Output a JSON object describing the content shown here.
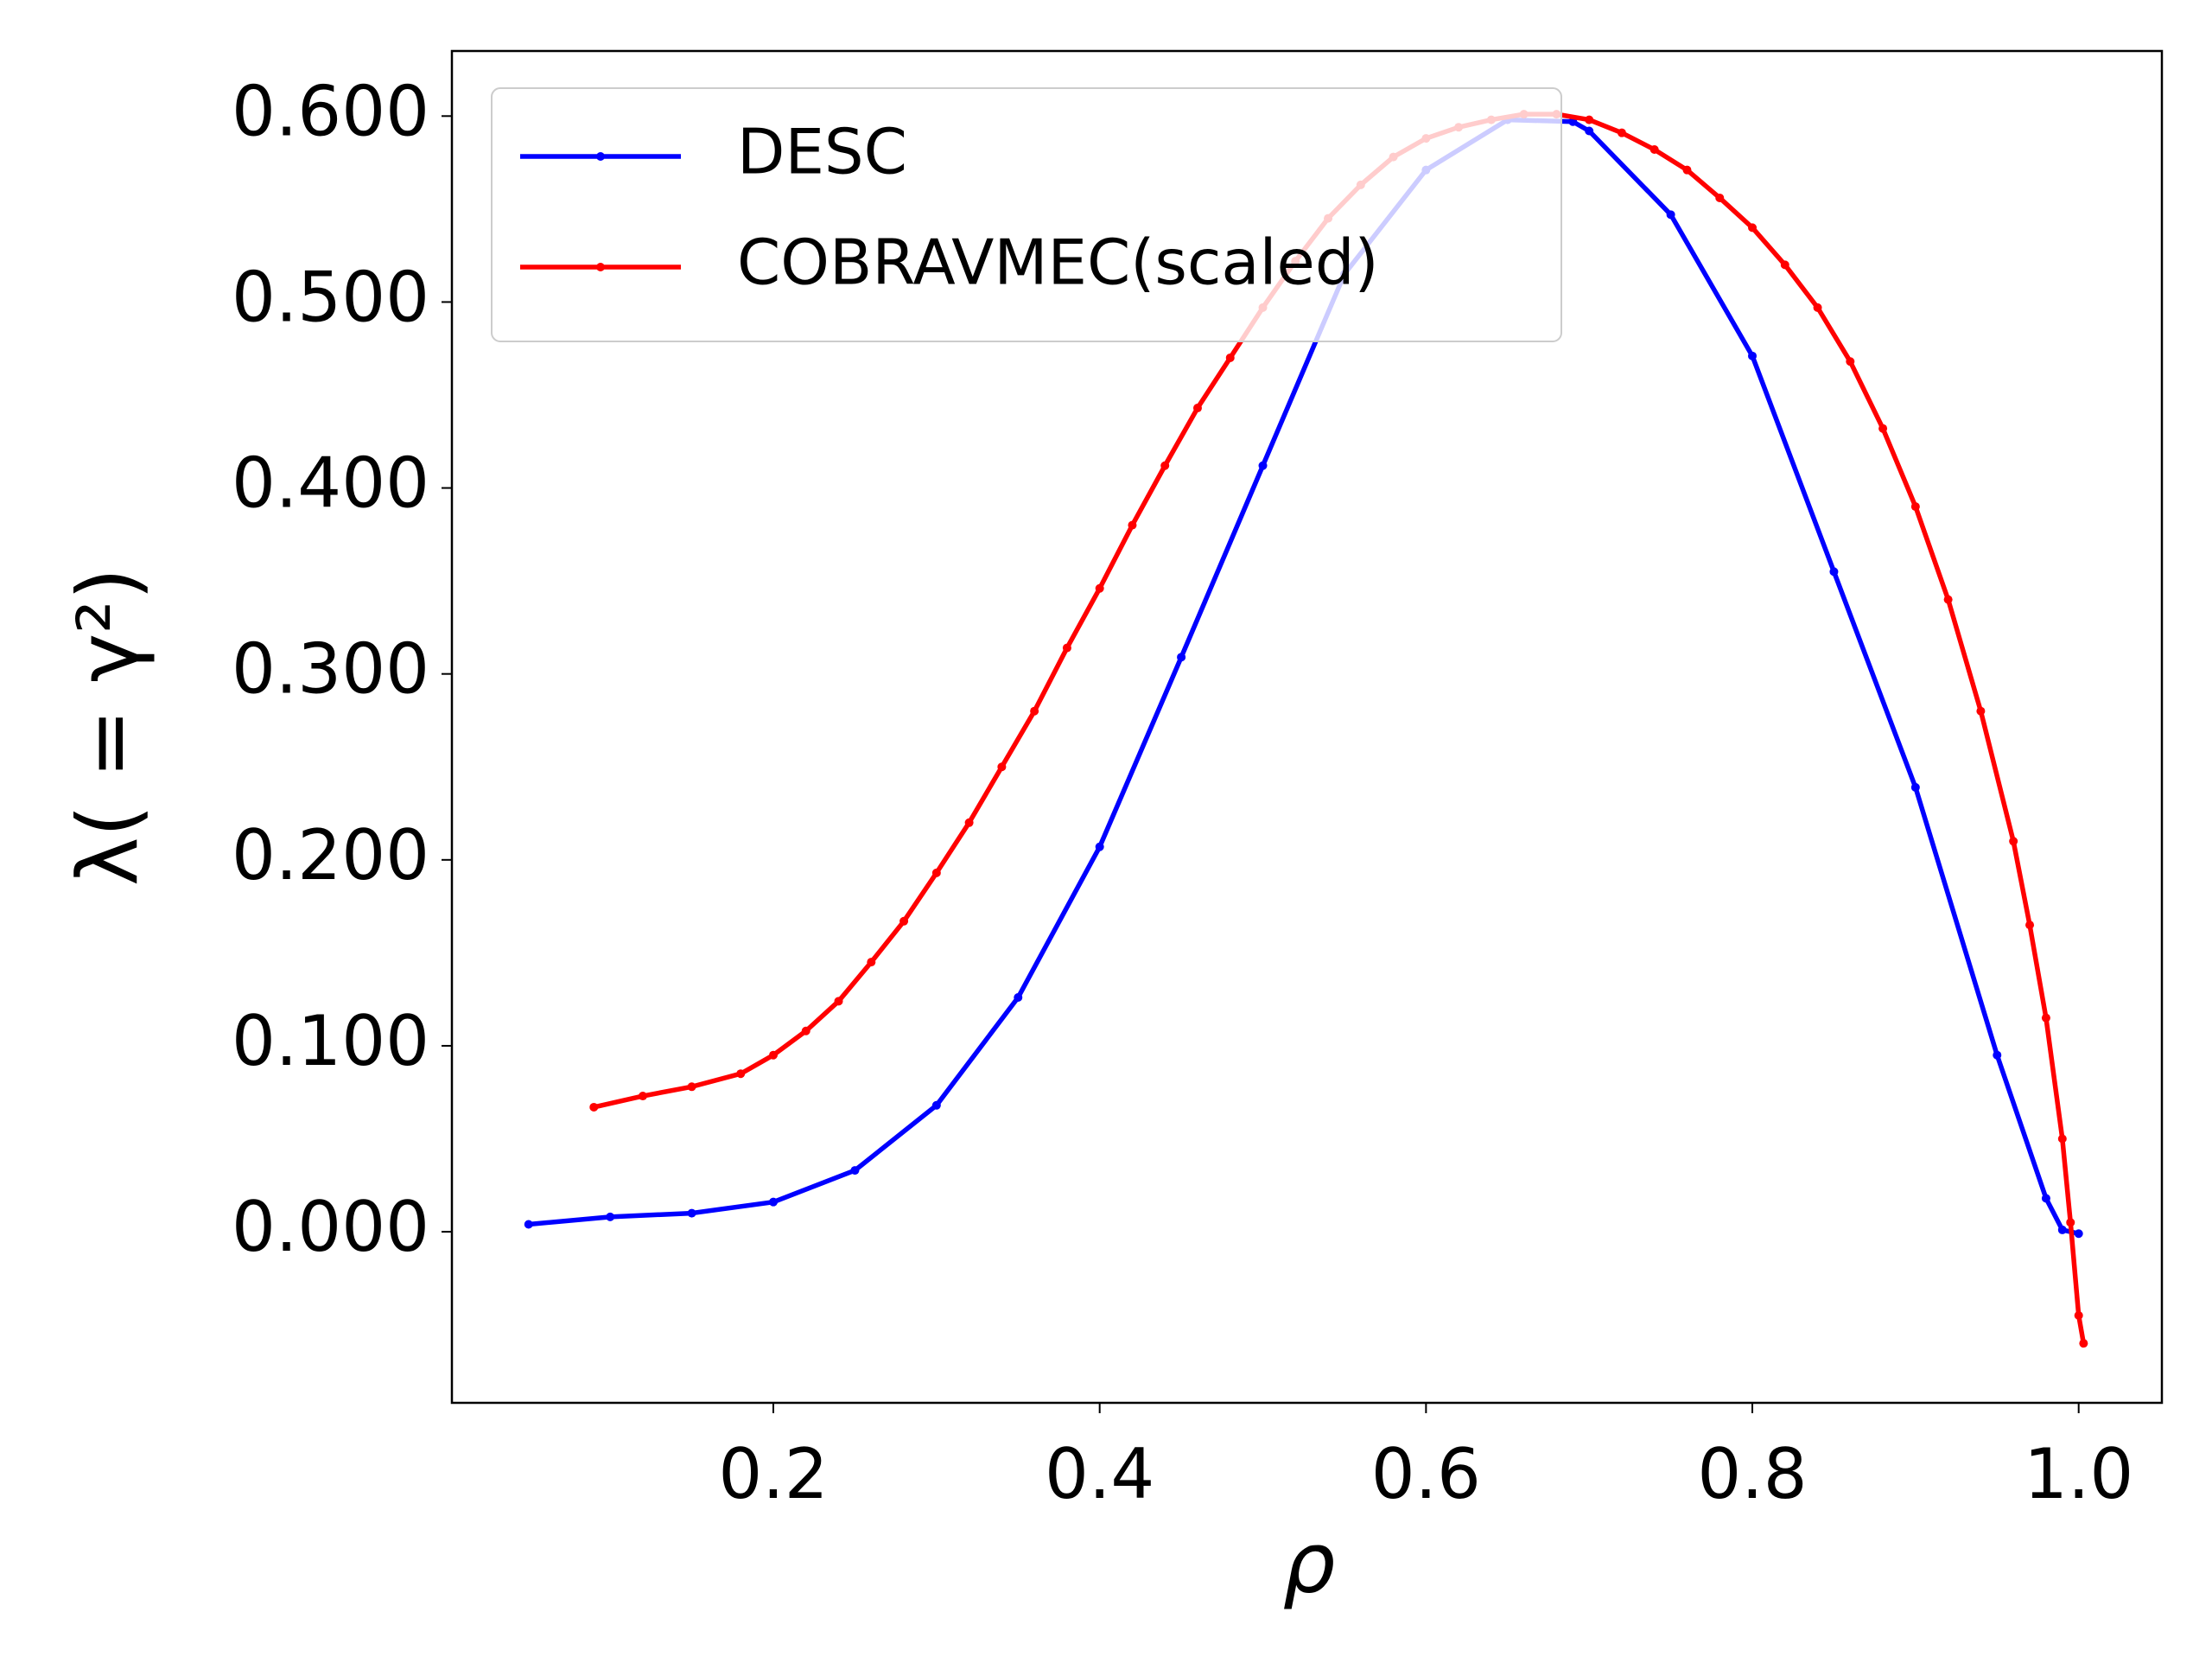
{
  "chart_data": {
    "type": "line",
    "x_label": "ρ",
    "y_label": "λ( = γ²)",
    "xlim": [
      0.003,
      1.051
    ],
    "ylim": [
      -0.092,
      0.635
    ],
    "xticks": [
      0.2,
      0.4,
      0.6,
      0.8,
      {
        "value": 1.0,
        "label": "1.0"
      }
    ],
    "yticks": [
      {
        "value": 0.0,
        "label": "0.000"
      },
      {
        "value": 0.1,
        "label": "0.100"
      },
      {
        "value": 0.2,
        "label": "0.200"
      },
      {
        "value": 0.3,
        "label": "0.300"
      },
      {
        "value": 0.4,
        "label": "0.400"
      },
      {
        "value": 0.5,
        "label": "0.500"
      },
      {
        "value": 0.6,
        "label": "0.600"
      }
    ],
    "grid": false,
    "legend": "upper left",
    "series": [
      {
        "name": "DESC",
        "color": "#0000ff",
        "x": [
          0.05,
          0.1,
          0.15,
          0.2,
          0.25,
          0.3,
          0.35,
          0.4,
          0.45,
          0.5,
          0.55,
          0.6,
          0.65,
          0.69,
          0.7,
          0.75,
          0.8,
          0.85,
          0.9,
          0.95,
          0.98,
          0.99,
          1.0
        ],
        "values": [
          0.004,
          0.008,
          0.01,
          0.016,
          0.033,
          0.068,
          0.126,
          0.207,
          0.309,
          0.412,
          0.515,
          0.571,
          0.598,
          0.597,
          0.592,
          0.547,
          0.471,
          0.355,
          0.239,
          0.095,
          0.018,
          0.001,
          -0.001
        ]
      },
      {
        "name": "COBRAVMEC(scaled)",
        "color": "#ff0000",
        "x": [
          0.09,
          0.12,
          0.15,
          0.18,
          0.2,
          0.22,
          0.24,
          0.26,
          0.28,
          0.3,
          0.32,
          0.34,
          0.36,
          0.38,
          0.4,
          0.42,
          0.44,
          0.46,
          0.48,
          0.5,
          0.52,
          0.54,
          0.56,
          0.58,
          0.6,
          0.62,
          0.64,
          0.66,
          0.68,
          0.7,
          0.72,
          0.74,
          0.76,
          0.78,
          0.8,
          0.82,
          0.84,
          0.86,
          0.88,
          0.9,
          0.92,
          0.94,
          0.96,
          0.97,
          0.98,
          0.99,
          0.995,
          1.0,
          1.003
        ],
        "values": [
          0.067,
          0.073,
          0.078,
          0.085,
          0.095,
          0.108,
          0.124,
          0.145,
          0.167,
          0.193,
          0.22,
          0.25,
          0.28,
          0.314,
          0.346,
          0.38,
          0.412,
          0.443,
          0.47,
          0.497,
          0.522,
          0.545,
          0.563,
          0.578,
          0.588,
          0.594,
          0.598,
          0.601,
          0.601,
          0.598,
          0.591,
          0.582,
          0.571,
          0.556,
          0.54,
          0.52,
          0.497,
          0.468,
          0.432,
          0.39,
          0.34,
          0.28,
          0.21,
          0.165,
          0.115,
          0.05,
          0.005,
          -0.045,
          -0.06
        ]
      }
    ]
  }
}
